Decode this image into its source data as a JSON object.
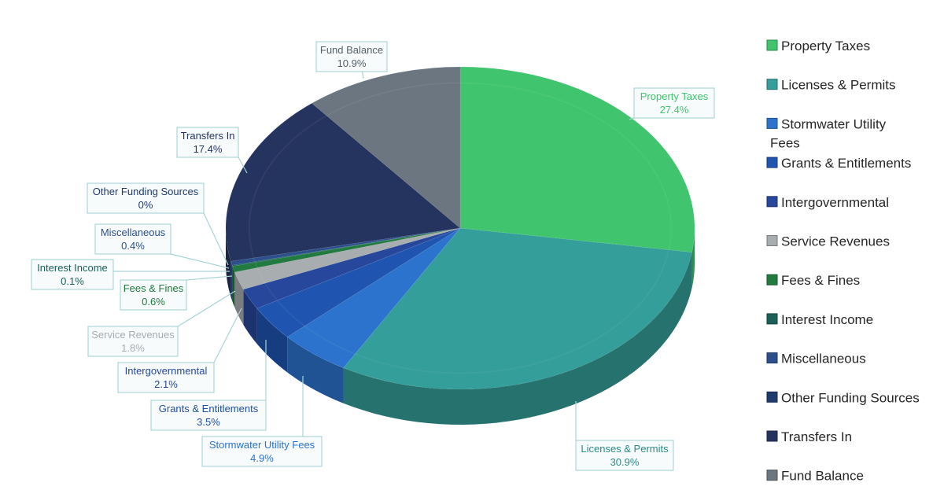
{
  "chart_data": {
    "type": "pie",
    "title": "",
    "legend_position": "right",
    "slices": [
      {
        "name": "Property Taxes",
        "value": 27.4,
        "label": "27.4%",
        "color": "#40c46e"
      },
      {
        "name": "Licenses & Permits",
        "value": 30.9,
        "label": "30.9%",
        "color": "#339e9a"
      },
      {
        "name": "Stormwater Utility Fees",
        "value": 4.9,
        "label": "4.9%",
        "color": "#2b73cc"
      },
      {
        "name": "Grants & Entitlements",
        "value": 3.5,
        "label": "3.5%",
        "color": "#1f55b0"
      },
      {
        "name": "Intergovernmental",
        "value": 2.1,
        "label": "2.1%",
        "color": "#27479c"
      },
      {
        "name": "Service Revenues",
        "value": 1.8,
        "label": "1.8%",
        "color": "#a8adb0"
      },
      {
        "name": "Fees & Fines",
        "value": 0.6,
        "label": "0.6%",
        "color": "#217a3f"
      },
      {
        "name": "Interest Income",
        "value": 0.1,
        "label": "0.1%",
        "color": "#1a5f58"
      },
      {
        "name": "Miscellaneous",
        "value": 0.4,
        "label": "0.4%",
        "color": "#2c4f8c"
      },
      {
        "name": "Other Funding Sources",
        "value": 0,
        "label": "0%",
        "color": "#1e3b6e"
      },
      {
        "name": "Transfers In",
        "value": 17.4,
        "label": "17.4%",
        "color": "#25345f"
      },
      {
        "name": "Fund Balance",
        "value": 10.9,
        "label": "10.9%",
        "color": "#6b7680"
      }
    ],
    "callout_text_colors": {
      "Property Taxes": "#40c46e",
      "Licenses & Permits": "#2a8a86",
      "Stormwater Utility Fees": "#2b73cc",
      "Grants & Entitlements": "#1f4fa0",
      "Intergovernmental": "#27479c",
      "Service Revenues": "#a8adb0",
      "Fees & Fines": "#217a3f",
      "Interest Income": "#1a5f58",
      "Miscellaneous": "#2c4f8c",
      "Other Funding Sources": "#1e3b6e",
      "Transfers In": "#25345f",
      "Fund Balance": "#555f68"
    }
  }
}
